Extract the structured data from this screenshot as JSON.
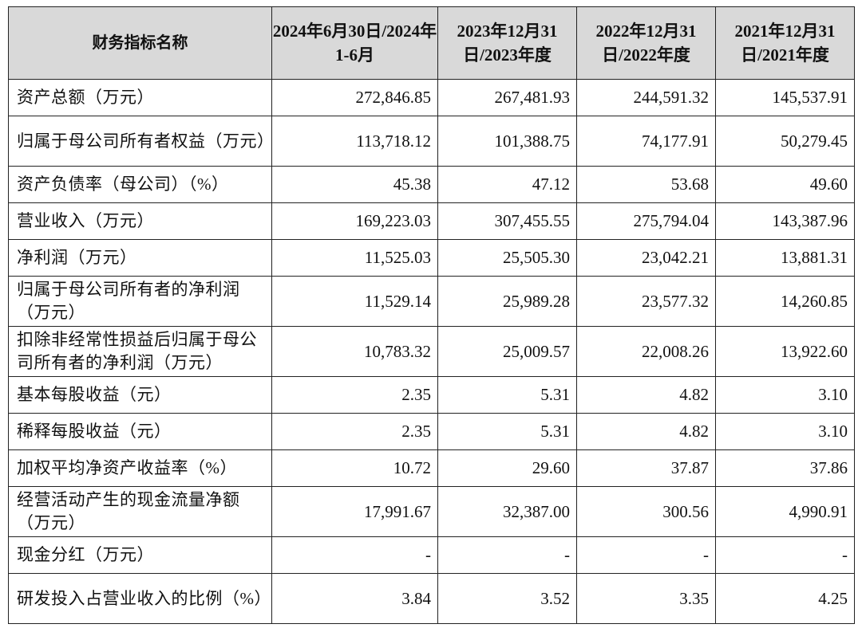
{
  "table": {
    "headers": [
      "财务指标名称",
      "2024年6月30日/2024年1-6月",
      "2023年12月31日/2023年度",
      "2022年12月31日/2022年度",
      "2021年12月31日/2021年度"
    ],
    "rows": [
      {
        "label": "资产总额（万元）",
        "values": [
          "272,846.85",
          "267,481.93",
          "244,591.32",
          "145,537.91"
        ]
      },
      {
        "label": "归属于母公司所有者权益（万元）",
        "values": [
          "113,718.12",
          "101,388.75",
          "74,177.91",
          "50,279.45"
        ]
      },
      {
        "label": "资产负债率（母公司）（%）",
        "values": [
          "45.38",
          "47.12",
          "53.68",
          "49.60"
        ]
      },
      {
        "label": "营业收入（万元）",
        "values": [
          "169,223.03",
          "307,455.55",
          "275,794.04",
          "143,387.96"
        ]
      },
      {
        "label": "净利润（万元）",
        "values": [
          "11,525.03",
          "25,505.30",
          "23,042.21",
          "13,881.31"
        ]
      },
      {
        "label": "归属于母公司所有者的净利润（万元）",
        "values": [
          "11,529.14",
          "25,989.28",
          "23,577.32",
          "14,260.85"
        ]
      },
      {
        "label": "扣除非经常性损益后归属于母公司所有者的净利润（万元）",
        "values": [
          "10,783.32",
          "25,009.57",
          "22,008.26",
          "13,922.60"
        ]
      },
      {
        "label": "基本每股收益（元）",
        "values": [
          "2.35",
          "5.31",
          "4.82",
          "3.10"
        ]
      },
      {
        "label": "稀释每股收益（元）",
        "values": [
          "2.35",
          "5.31",
          "4.82",
          "3.10"
        ]
      },
      {
        "label": "加权平均净资产收益率（%）",
        "values": [
          "10.72",
          "29.60",
          "37.87",
          "37.86"
        ]
      },
      {
        "label": "经营活动产生的现金流量净额（万元）",
        "values": [
          "17,991.67",
          "32,387.00",
          "300.56",
          "4,990.91"
        ]
      },
      {
        "label": "现金分红（万元）",
        "values": [
          "-",
          "-",
          "-",
          "-"
        ]
      },
      {
        "label": "研发投入占营业收入的比例（%）",
        "values": [
          "3.84",
          "3.52",
          "3.35",
          "4.25"
        ]
      }
    ]
  },
  "colors": {
    "header_background": "#d9d9d9",
    "border": "#222222",
    "text": "#111111"
  }
}
